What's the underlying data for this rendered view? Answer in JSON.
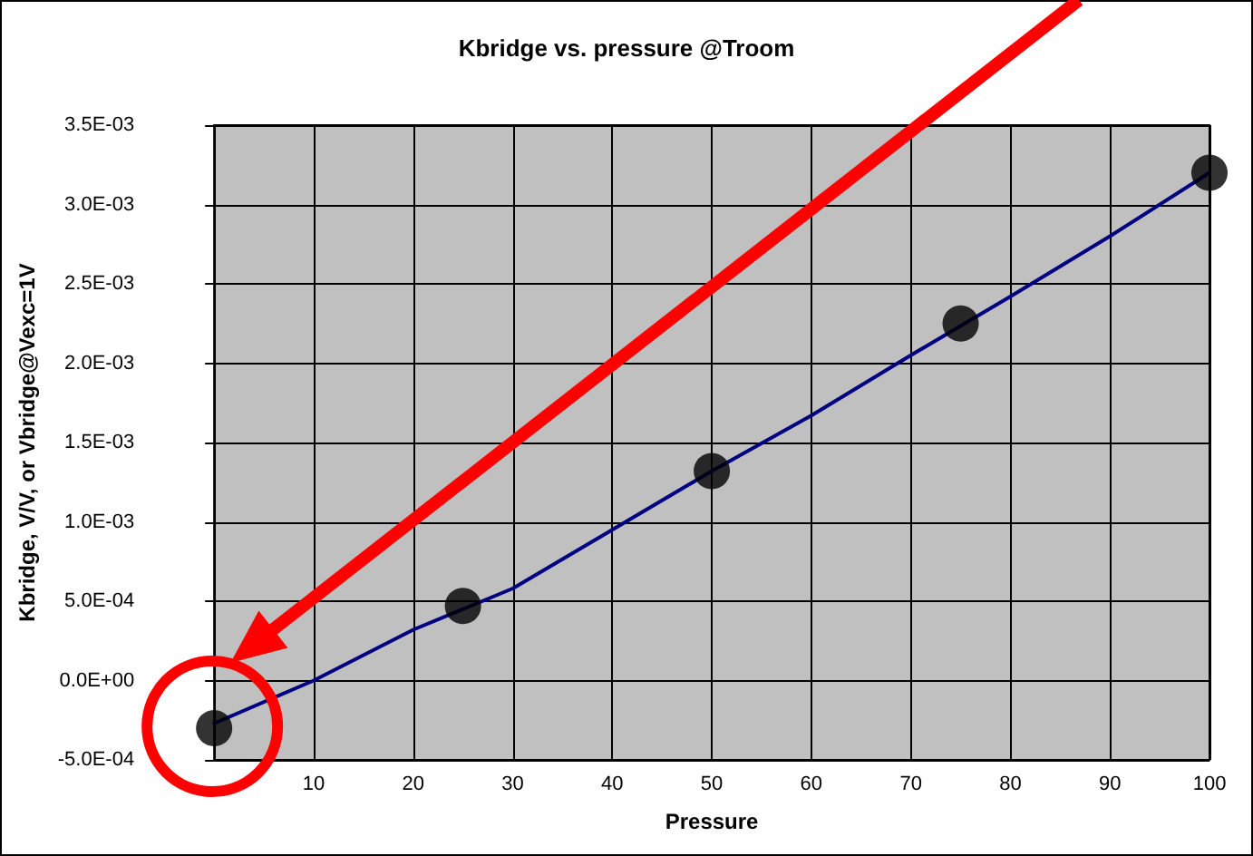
{
  "chart_data": {
    "type": "line",
    "title": "Kbridge vs. pressure @Troom",
    "xlabel": "Pressure",
    "ylabel": "Kbridge, V/V, or Vbridge@Vexc=1V",
    "xlim": [
      0,
      100
    ],
    "xticks": [
      10,
      20,
      30,
      40,
      50,
      60,
      70,
      80,
      90,
      100
    ],
    "ylim": [
      -0.0005,
      0.0035
    ],
    "yticks": [
      {
        "value": -0.0005,
        "label": "-5.0E-04"
      },
      {
        "value": 0,
        "label": "0.0E+00"
      },
      {
        "value": 0.0005,
        "label": "5.0E-04"
      },
      {
        "value": 0.001,
        "label": "1.0E-03"
      },
      {
        "value": 0.0015,
        "label": "1.5E-03"
      },
      {
        "value": 0.002,
        "label": "2.0E-03"
      },
      {
        "value": 0.0025,
        "label": "2.5E-03"
      },
      {
        "value": 0.003,
        "label": "3.0E-03"
      },
      {
        "value": 0.0035,
        "label": "3.5E-03"
      }
    ],
    "grid": true,
    "series": [
      {
        "type": "line",
        "color": "#000080",
        "marker": "none",
        "line_style": "solid",
        "x": [
          0,
          10,
          20,
          30,
          40,
          50,
          60,
          70,
          80,
          90,
          100
        ],
        "values": [
          -0.00027,
          0.0,
          0.00032,
          0.00058,
          0.00095,
          0.00132,
          0.00167,
          0.00205,
          0.00242,
          0.0028,
          0.0032
        ]
      },
      {
        "type": "scatter",
        "color": "#000000",
        "marker": "circle",
        "x": [
          0,
          25,
          50,
          75,
          100
        ],
        "values": [
          -0.0003,
          0.00047,
          0.00132,
          0.00225,
          0.0032
        ]
      }
    ]
  }
}
